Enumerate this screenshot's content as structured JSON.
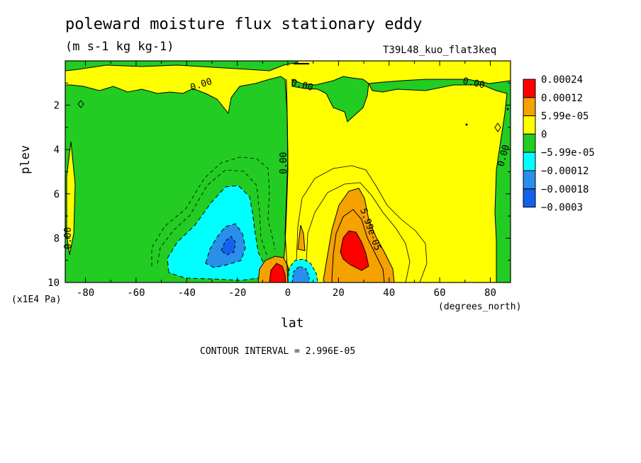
{
  "title": "poleward moisture flux stationary eddy",
  "units": "(m s-1 kg kg-1)",
  "dataset_label": "T39L48_kuo_flat3keq",
  "contour_interval_text": "CONTOUR INTERVAL = 2.996E-05",
  "colors": {
    "red": "#ff0000",
    "orange": "#f5a100",
    "yellow": "#ffff00",
    "green": "#22cc22",
    "cyan": "#00ffff",
    "blue_mid": "#2a8fea",
    "blue_dark": "#1460ee"
  },
  "chart_data": {
    "type": "heatmap",
    "title": "poleward moisture flux stationary eddy",
    "subtitle": "(m s-1 kg kg-1)",
    "xlabel": "lat",
    "xlabel_units": "(degrees_north)",
    "ylabel": "plev",
    "ylabel_units": "(x1E4 Pa)",
    "xlim": [
      -88,
      88
    ],
    "ylim": [
      10,
      0
    ],
    "y_inverted": true,
    "x_ticks": [
      -80,
      -60,
      -40,
      -20,
      0,
      20,
      40,
      60,
      80
    ],
    "y_ticks": [
      2,
      4,
      6,
      8,
      10
    ],
    "contour_interval": 2.996e-05,
    "legend": {
      "placement": "right",
      "levels": [
        "0.00024",
        "0.00012",
        "5.99e-05",
        "0",
        "−5.99e-05",
        "−0.00012",
        "−0.00018",
        "−0.0003"
      ],
      "colors": [
        "#ff0000",
        "#f5a100",
        "#ffff00",
        "#22cc22",
        "#00ffff",
        "#2a8fea",
        "#1460ee"
      ]
    },
    "contour_labels": [
      "0.00",
      "0.00",
      "0.00",
      "0.00",
      "0.00",
      "0.00",
      "5.99e-05"
    ],
    "features": [
      {
        "sign": "positive",
        "max_level": "0.00024",
        "lat_center": 25,
        "plev_center": 8.5
      },
      {
        "sign": "positive",
        "max_level": "0.00024",
        "lat_center": -3,
        "plev_center": 9.6
      },
      {
        "sign": "negative",
        "min_level": "−0.00018",
        "lat_center": -24,
        "plev_center": 8.5
      },
      {
        "sign": "negative",
        "min_level": "−0.00012",
        "lat_center": 5,
        "plev_center": 9.5
      }
    ]
  }
}
